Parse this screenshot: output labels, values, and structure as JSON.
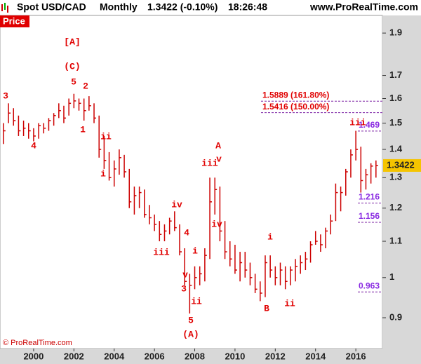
{
  "chart_data": {
    "type": "ohlc",
    "title": "Spot USD/CAD",
    "period": "Monthly",
    "quote": "1.3422 (-0.10%)",
    "time": "18:26:48",
    "site": "www.ProRealTime.com",
    "panel_label": "Price",
    "copyright": "© ProRealTime.com",
    "last_price": {
      "value": 1.3422,
      "label": "1.3422"
    },
    "color": "#cc0000",
    "log_scale": true,
    "xlim": [
      1998.33,
      2017.32
    ],
    "xticks": [
      2000,
      2002,
      2004,
      2006,
      2008,
      2010,
      2012,
      2014,
      2016
    ],
    "ylim": [
      0.83,
      1.99
    ],
    "yticks": [
      0.9,
      1,
      1.1,
      1.2,
      1.3,
      1.4,
      1.5,
      1.6,
      1.7,
      1.9
    ],
    "x": [
      1998.5,
      1998.75,
      1999,
      1999.25,
      1999.5,
      1999.75,
      2000,
      2000.25,
      2000.5,
      2000.75,
      2001,
      2001.25,
      2001.5,
      2001.75,
      2002,
      2002.25,
      2002.5,
      2002.75,
      2003,
      2003.25,
      2003.5,
      2003.75,
      2004,
      2004.25,
      2004.5,
      2004.75,
      2005,
      2005.25,
      2005.5,
      2005.75,
      2006,
      2006.25,
      2006.5,
      2006.75,
      2007,
      2007.25,
      2007.5,
      2007.75,
      2008,
      2008.25,
      2008.5,
      2008.75,
      2009,
      2009.25,
      2009.5,
      2009.75,
      2010,
      2010.25,
      2010.5,
      2010.75,
      2011,
      2011.25,
      2011.5,
      2011.75,
      2012,
      2012.25,
      2012.5,
      2012.75,
      2013,
      2013.25,
      2013.5,
      2013.75,
      2014,
      2014.25,
      2014.5,
      2014.75,
      2015,
      2015.25,
      2015.5,
      2015.75,
      2016,
      2016.25,
      2016.5,
      2016.75,
      2017
    ],
    "high": [
      1.5,
      1.58,
      1.56,
      1.53,
      1.51,
      1.5,
      1.48,
      1.5,
      1.5,
      1.52,
      1.54,
      1.58,
      1.57,
      1.6,
      1.62,
      1.6,
      1.6,
      1.61,
      1.58,
      1.53,
      1.45,
      1.39,
      1.36,
      1.4,
      1.38,
      1.33,
      1.27,
      1.27,
      1.26,
      1.21,
      1.18,
      1.16,
      1.15,
      1.17,
      1.19,
      1.15,
      1.08,
      1.01,
      1.03,
      1.03,
      1.08,
      1.3,
      1.3,
      1.27,
      1.16,
      1.1,
      1.09,
      1.07,
      1.07,
      1.04,
      1.01,
      0.99,
      1.06,
      1.06,
      1.03,
      1.04,
      1.03,
      1.03,
      1.05,
      1.06,
      1.07,
      1.1,
      1.13,
      1.12,
      1.14,
      1.18,
      1.28,
      1.27,
      1.33,
      1.4,
      1.47,
      1.41,
      1.33,
      1.35,
      1.36
    ],
    "low": [
      1.42,
      1.5,
      1.49,
      1.45,
      1.45,
      1.44,
      1.43,
      1.44,
      1.46,
      1.47,
      1.49,
      1.52,
      1.5,
      1.53,
      1.56,
      1.55,
      1.51,
      1.55,
      1.5,
      1.37,
      1.33,
      1.29,
      1.27,
      1.31,
      1.3,
      1.2,
      1.18,
      1.2,
      1.17,
      1.15,
      1.13,
      1.1,
      1.1,
      1.12,
      1.13,
      1.06,
      0.98,
      0.91,
      0.97,
      0.98,
      0.99,
      1.05,
      1.18,
      1.1,
      1.05,
      1.03,
      1.01,
      0.99,
      1.0,
      0.98,
      0.96,
      0.94,
      0.95,
      1.0,
      0.98,
      0.98,
      0.97,
      0.98,
      0.99,
      1.01,
      1.02,
      1.04,
      1.09,
      1.07,
      1.08,
      1.12,
      1.16,
      1.19,
      1.24,
      1.3,
      1.36,
      1.25,
      1.26,
      1.28,
      1.3
    ],
    "close": [
      1.47,
      1.54,
      1.51,
      1.47,
      1.48,
      1.47,
      1.45,
      1.49,
      1.48,
      1.51,
      1.53,
      1.55,
      1.52,
      1.58,
      1.59,
      1.58,
      1.55,
      1.57,
      1.52,
      1.4,
      1.36,
      1.3,
      1.33,
      1.37,
      1.32,
      1.22,
      1.24,
      1.25,
      1.18,
      1.17,
      1.15,
      1.12,
      1.13,
      1.16,
      1.14,
      1.07,
      0.99,
      0.98,
      1.0,
      1.01,
      1.06,
      1.22,
      1.26,
      1.13,
      1.07,
      1.05,
      1.02,
      1.04,
      1.02,
      1.0,
      0.97,
      0.96,
      1.04,
      1.02,
      1.0,
      1.02,
      0.99,
      1.02,
      1.03,
      1.04,
      1.05,
      1.09,
      1.1,
      1.09,
      1.13,
      1.16,
      1.25,
      1.25,
      1.32,
      1.38,
      1.4,
      1.29,
      1.31,
      1.34,
      1.342
    ],
    "fib_levels": [
      {
        "value": 1.5889,
        "label": "1.5889 (161.80%)"
      },
      {
        "value": 1.5416,
        "label": "1.5416 (150.00%)"
      }
    ],
    "levels": [
      {
        "value": 1.469,
        "label": "1.469"
      },
      {
        "value": 1.216,
        "label": "1.216"
      },
      {
        "value": 1.156,
        "label": "1.156"
      },
      {
        "value": 0.963,
        "label": "0.963"
      }
    ],
    "annotations": [
      "[A]",
      "(C)",
      "5",
      "2",
      "3",
      "1",
      "ii",
      "4",
      "i",
      "iv",
      "4",
      "iii",
      "i",
      "v",
      "3",
      "5",
      "ii",
      "(A)",
      "A",
      "iii",
      "v",
      "iv",
      "i",
      "B",
      "ii",
      "iii"
    ]
  }
}
